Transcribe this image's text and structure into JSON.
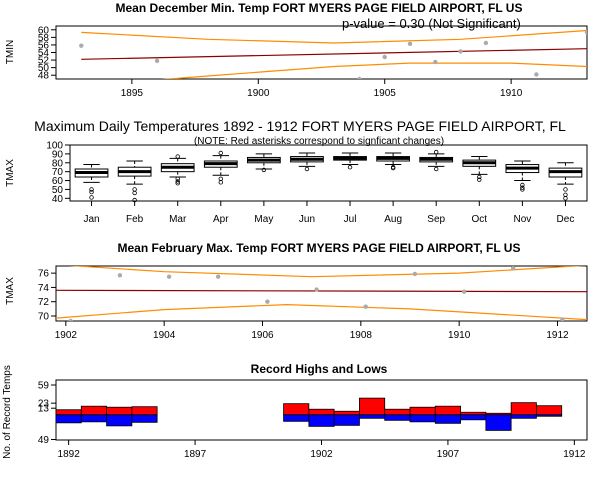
{
  "chart_data": [
    {
      "type": "scatter",
      "title": "Mean December Min. Temp FORT MYERS PAGE FIELD AIRPORT, FL US",
      "annotation": "p-value = 0.30 (Not Significant)",
      "xlabel": "",
      "ylabel": "TMIN",
      "xlim": [
        1892,
        1913
      ],
      "ylim": [
        47,
        61
      ],
      "xticks": [
        1895,
        1900,
        1905,
        1910
      ],
      "yticks": [
        48,
        50,
        52,
        54,
        56,
        58,
        60
      ],
      "points": [
        {
          "x": 1893,
          "y": 55.8
        },
        {
          "x": 1896,
          "y": 51.8
        },
        {
          "x": 1904,
          "y": 47.0
        },
        {
          "x": 1905,
          "y": 52.8
        },
        {
          "x": 1906,
          "y": 56.3
        },
        {
          "x": 1907,
          "y": 51.5
        },
        {
          "x": 1908,
          "y": 54.3
        },
        {
          "x": 1909,
          "y": 56.5
        },
        {
          "x": 1911,
          "y": 48.2
        },
        {
          "x": 1913,
          "y": 59.3
        }
      ],
      "trend": [
        {
          "x": 1893,
          "y": 52.2
        },
        {
          "x": 1913,
          "y": 55.0
        }
      ],
      "upper_band": [
        {
          "x": 1893,
          "y": 59.3
        },
        {
          "x": 1898,
          "y": 57.5
        },
        {
          "x": 1903,
          "y": 56.5
        },
        {
          "x": 1908,
          "y": 57.5
        },
        {
          "x": 1913,
          "y": 59.8
        }
      ],
      "lower_band": [
        {
          "x": 1893,
          "y": 45.2
        },
        {
          "x": 1898,
          "y": 47.8
        },
        {
          "x": 1903,
          "y": 50.3
        },
        {
          "x": 1906,
          "y": 51.2
        },
        {
          "x": 1910,
          "y": 51.2
        },
        {
          "x": 1913,
          "y": 50.3
        }
      ],
      "colors": {
        "points": "#aaaaaa",
        "trend": "#8b0000",
        "band": "#ff8c00"
      }
    },
    {
      "type": "box",
      "title": "Maximum Daily Temperatures 1892 - 1912 FORT MYERS PAGE FIELD AIRPORT, FL",
      "subtitle": "(NOTE: Red asterisks correspond to signficant changes)",
      "ylabel": "TMAX",
      "ylim": [
        37,
        100
      ],
      "yticks": [
        40,
        50,
        60,
        70,
        80,
        90,
        100
      ],
      "categories": [
        "Jan",
        "Feb",
        "Mar",
        "Apr",
        "May",
        "Jun",
        "Jul",
        "Aug",
        "Sep",
        "Oct",
        "Nov",
        "Dec"
      ],
      "boxes": [
        {
          "min": 58,
          "q1": 64,
          "median": 69,
          "q3": 73,
          "max": 78,
          "outliers": [
            50,
            47,
            41
          ]
        },
        {
          "min": 56,
          "q1": 65,
          "median": 70,
          "q3": 75,
          "max": 82,
          "outliers": [
            50,
            46,
            38
          ]
        },
        {
          "min": 64,
          "q1": 70,
          "median": 75,
          "q3": 79,
          "max": 85,
          "outliers": [
            62,
            59,
            57,
            87
          ]
        },
        {
          "min": 66,
          "q1": 75,
          "median": 79,
          "q3": 82,
          "max": 88,
          "outliers": [
            62,
            58,
            91
          ]
        },
        {
          "min": 73,
          "q1": 80,
          "median": 83,
          "q3": 86,
          "max": 90,
          "outliers": [
            72
          ]
        },
        {
          "min": 76,
          "q1": 81,
          "median": 84,
          "q3": 87,
          "max": 91,
          "outliers": [
            73
          ]
        },
        {
          "min": 78,
          "q1": 83,
          "median": 85,
          "q3": 87,
          "max": 91,
          "outliers": [
            75
          ]
        },
        {
          "min": 78,
          "q1": 82,
          "median": 85,
          "q3": 87,
          "max": 91,
          "outliers": [
            75,
            74
          ]
        },
        {
          "min": 76,
          "q1": 81,
          "median": 84,
          "q3": 86,
          "max": 90,
          "outliers": [
            73,
            92
          ]
        },
        {
          "min": 67,
          "q1": 76,
          "median": 80,
          "q3": 83,
          "max": 87,
          "outliers": [
            64,
            61
          ]
        },
        {
          "min": 60,
          "q1": 69,
          "median": 74,
          "q3": 78,
          "max": 82,
          "outliers": [
            55,
            52,
            50
          ]
        },
        {
          "min": 56,
          "q1": 64,
          "median": 70,
          "q3": 74,
          "max": 80,
          "outliers": [
            50,
            44,
            40
          ]
        }
      ]
    },
    {
      "type": "scatter",
      "title": "Mean February Max. Temp FORT MYERS PAGE FIELD AIRPORT, FL US",
      "ylabel": "TMAX",
      "xlim": [
        1901.8,
        1912.6
      ],
      "ylim": [
        69.3,
        77.0
      ],
      "xticks": [
        1902,
        1904,
        1906,
        1908,
        1910,
        1912
      ],
      "yticks": [
        70,
        72,
        74,
        76
      ],
      "points": [
        {
          "x": 1903.1,
          "y": 75.7
        },
        {
          "x": 1904.1,
          "y": 75.5
        },
        {
          "x": 1905.1,
          "y": 75.5
        },
        {
          "x": 1906.1,
          "y": 72.0
        },
        {
          "x": 1907.1,
          "y": 73.7
        },
        {
          "x": 1908.1,
          "y": 71.3
        },
        {
          "x": 1909.1,
          "y": 75.9
        },
        {
          "x": 1910.1,
          "y": 73.4
        },
        {
          "x": 1911.1,
          "y": 76.7
        },
        {
          "x": 1912.1,
          "y": 69.5
        },
        {
          "x": 1902.1,
          "y": 69.3
        }
      ],
      "trend": [
        {
          "x": 1901.8,
          "y": 73.6
        },
        {
          "x": 1912.6,
          "y": 73.4
        }
      ],
      "upper_band": [
        {
          "x": 1901.8,
          "y": 77.2
        },
        {
          "x": 1904,
          "y": 76.2
        },
        {
          "x": 1907,
          "y": 75.5
        },
        {
          "x": 1910,
          "y": 76.0
        },
        {
          "x": 1912.6,
          "y": 77.1
        }
      ],
      "lower_band": [
        {
          "x": 1901.8,
          "y": 69.7
        },
        {
          "x": 1904,
          "y": 70.9
        },
        {
          "x": 1906.5,
          "y": 71.6
        },
        {
          "x": 1909,
          "y": 71.0
        },
        {
          "x": 1912.6,
          "y": 69.5
        }
      ],
      "colors": {
        "points": "#aaaaaa",
        "trend": "#8b0000",
        "band": "#ff8c00"
      }
    },
    {
      "type": "bar",
      "title": "Record Highs and Lows",
      "ylabel": "No. of Record Temps",
      "xlim": [
        1891.5,
        1912.5
      ],
      "xticks": [
        1892,
        1897,
        1902,
        1907,
        1912
      ],
      "yticks": [
        -49,
        13,
        23,
        59
      ],
      "ytick_labels": [
        "49",
        "13",
        "23",
        "59"
      ],
      "years": [
        1892,
        1893,
        1894,
        1895,
        1901,
        1902,
        1903,
        1904,
        1905,
        1906,
        1907,
        1908,
        1909,
        1910,
        1911
      ],
      "highs": [
        10,
        17,
        15,
        16,
        22,
        11,
        7,
        33,
        11,
        15,
        17,
        5,
        3,
        24,
        18
      ],
      "lows": [
        -16,
        -14,
        -22,
        -15,
        -13,
        -23,
        -21,
        -7,
        -11,
        -14,
        -17,
        -10,
        -31,
        -7,
        -3
      ],
      "colors": {
        "highs": "#ff0000",
        "lows": "#0000ff"
      }
    }
  ]
}
